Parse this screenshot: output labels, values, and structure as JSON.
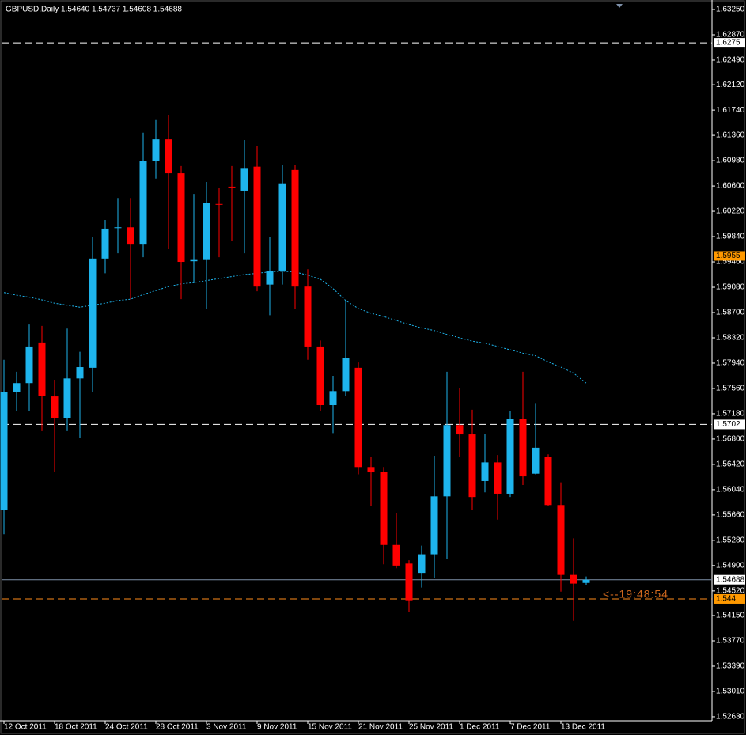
{
  "chart_data": {
    "type": "candlestick",
    "title": "GBPUSD,Daily  1.54640 1.54737 1.54608 1.54688",
    "categories": [
      "12 Oct 2011",
      null,
      null,
      null,
      "18 Oct 2011",
      null,
      null,
      null,
      "24 Oct 2011",
      null,
      null,
      null,
      "28 Oct 2011",
      null,
      null,
      null,
      "3 Nov 2011",
      null,
      null,
      null,
      "9 Nov 2011",
      null,
      null,
      null,
      "15 Nov 2011",
      null,
      null,
      null,
      "21 Nov 2011",
      null,
      null,
      null,
      "25 Nov 2011",
      null,
      null,
      null,
      "1 Dec 2011",
      null,
      null,
      null,
      "7 Dec 2011",
      null,
      null,
      null,
      "13 Dec 2011",
      null,
      null
    ],
    "open": [
      1.5573,
      1.5751,
      1.5764,
      1.5825,
      1.5744,
      1.5712,
      1.5771,
      1.5787,
      1.5951,
      1.5997,
      1.5998,
      1.5972,
      1.6097,
      1.613,
      1.6079,
      1.5947,
      1.595,
      1.6033,
      1.6059,
      1.6053,
      1.6089,
      1.5912,
      1.5933,
      1.6084,
      1.5909,
      1.5819,
      1.5731,
      1.5752,
      1.5787,
      1.5638,
      1.5631,
      1.5521,
      1.5493,
      1.5479,
      1.5507,
      1.5594,
      1.5701,
      1.5687,
      1.5617,
      1.5645,
      1.5598,
      1.571,
      1.5628,
      1.5653,
      1.5581,
      1.5476,
      1.5464
    ],
    "high": [
      1.5799,
      1.5781,
      1.5852,
      1.585,
      1.5769,
      1.5846,
      1.5811,
      1.5983,
      1.6009,
      1.6042,
      1.6042,
      1.614,
      1.6159,
      1.6167,
      1.609,
      1.6048,
      1.6066,
      1.6057,
      1.609,
      1.6129,
      1.612,
      1.5983,
      1.6092,
      1.6092,
      1.5935,
      1.5828,
      1.5775,
      1.5888,
      1.5795,
      1.5653,
      1.5638,
      1.5569,
      1.5498,
      1.552,
      1.5655,
      1.5781,
      1.5757,
      1.5724,
      1.5688,
      1.5656,
      1.5722,
      1.5781,
      1.5733,
      1.5657,
      1.5615,
      1.5531,
      1.54737
    ],
    "low": [
      1.5537,
      1.5722,
      1.5722,
      1.5692,
      1.563,
      1.5692,
      1.5682,
      1.5751,
      1.5929,
      1.5959,
      1.589,
      1.5953,
      1.6071,
      1.5965,
      1.589,
      1.5914,
      1.5876,
      1.5953,
      1.5977,
      1.5959,
      1.5902,
      1.5866,
      1.5912,
      1.5876,
      1.5799,
      1.5722,
      1.5689,
      1.5745,
      1.5627,
      1.5579,
      1.5492,
      1.5486,
      1.5421,
      1.5457,
      1.5472,
      1.55,
      1.5653,
      1.5573,
      1.56,
      1.5559,
      1.5593,
      1.5611,
      1.5627,
      1.5579,
      1.5451,
      1.5407,
      1.54608
    ],
    "close": [
      1.5751,
      1.5764,
      1.5819,
      1.5745,
      1.5712,
      1.5771,
      1.5788,
      1.5951,
      1.5996,
      1.5998,
      1.5972,
      1.6097,
      1.613,
      1.6079,
      1.5946,
      1.595,
      1.6034,
      1.6032,
      1.6058,
      1.6087,
      1.5909,
      1.5933,
      1.6064,
      1.5909,
      1.5819,
      1.5731,
      1.5752,
      1.5802,
      1.5638,
      1.563,
      1.5521,
      1.549,
      1.5438,
      1.5507,
      1.5594,
      1.5701,
      1.5687,
      1.5593,
      1.5645,
      1.5598,
      1.571,
      1.5624,
      1.5667,
      1.5581,
      1.5476,
      1.5463,
      1.54688
    ],
    "up_color": "#1eb4ec",
    "down_color": "#ff0000",
    "ma": {
      "color": "#1eb4ec",
      "values": [
        1.59,
        1.5896,
        1.5893,
        1.5889,
        1.5884,
        1.5881,
        1.5878,
        1.5881,
        1.5884,
        1.5888,
        1.589,
        1.5897,
        1.5903,
        1.5909,
        1.5913,
        1.5915,
        1.5918,
        1.5921,
        1.5924,
        1.5927,
        1.5929,
        1.5931,
        1.5932,
        1.5931,
        1.5926,
        1.592,
        1.5906,
        1.5888,
        1.5876,
        1.5869,
        1.5864,
        1.5858,
        1.5852,
        1.5847,
        1.5843,
        1.5837,
        1.5832,
        1.5827,
        1.5824,
        1.5819,
        1.5814,
        1.5809,
        1.5805,
        1.5796,
        1.5788,
        1.5779,
        1.5764
      ]
    },
    "levels": [
      {
        "value": 1.6275,
        "color": "#ffffff",
        "label_color": "#ffffff",
        "style": "dashed"
      },
      {
        "value": 1.5955,
        "color": "#ff8c1a",
        "label_color": "#ff9900",
        "style": "dashed"
      },
      {
        "value": 1.5702,
        "color": "#ffffff",
        "label_color": "#ffffff",
        "style": "dashed"
      },
      {
        "value": 1.54688,
        "color": "#7d8fa8",
        "label_color": "#ffffff",
        "style": "solid"
      },
      {
        "value": 1.544,
        "color": "#ff8c1a",
        "label_color": "#ff9900",
        "style": "dashed"
      }
    ],
    "annotation": {
      "text": "<--19:48:54",
      "color": "#d2691e"
    },
    "ylim": [
      1.5257,
      1.63357
    ],
    "yticks": [
      {
        "value": 1.6325,
        "label": "1.63250"
      },
      {
        "value": 1.6287,
        "label": "1.62870"
      },
      {
        "value": 1.6249,
        "label": "1.62490"
      },
      {
        "value": 1.6212,
        "label": "1.62120"
      },
      {
        "value": 1.6174,
        "label": "1.61740"
      },
      {
        "value": 1.6136,
        "label": "1.61360"
      },
      {
        "value": 1.6098,
        "label": "1.60980"
      },
      {
        "value": 1.606,
        "label": "1.60600"
      },
      {
        "value": 1.6022,
        "label": "1.60220"
      },
      {
        "value": 1.5984,
        "label": "1.59840"
      },
      {
        "value": 1.5946,
        "label": "1.59460"
      },
      {
        "value": 1.5908,
        "label": "1.59080"
      },
      {
        "value": 1.587,
        "label": "1.58700"
      },
      {
        "value": 1.5832,
        "label": "1.58320"
      },
      {
        "value": 1.5794,
        "label": "1.57940"
      },
      {
        "value": 1.5756,
        "label": "1.57560"
      },
      {
        "value": 1.5718,
        "label": "1.57180"
      },
      {
        "value": 1.568,
        "label": "1.56800"
      },
      {
        "value": 1.5642,
        "label": "1.56420"
      },
      {
        "value": 1.5604,
        "label": "1.56040"
      },
      {
        "value": 1.5566,
        "label": "1.55660"
      },
      {
        "value": 1.5528,
        "label": "1.55280"
      },
      {
        "value": 1.549,
        "label": "1.54900"
      },
      {
        "value": 1.5452,
        "label": "1.54520"
      },
      {
        "value": 1.5415,
        "label": "1.54150"
      },
      {
        "value": 1.5377,
        "label": "1.53770"
      },
      {
        "value": 1.5339,
        "label": "1.53390"
      },
      {
        "value": 1.5301,
        "label": "1.53010"
      },
      {
        "value": 1.5263,
        "label": "1.52630"
      }
    ],
    "grid": false
  }
}
